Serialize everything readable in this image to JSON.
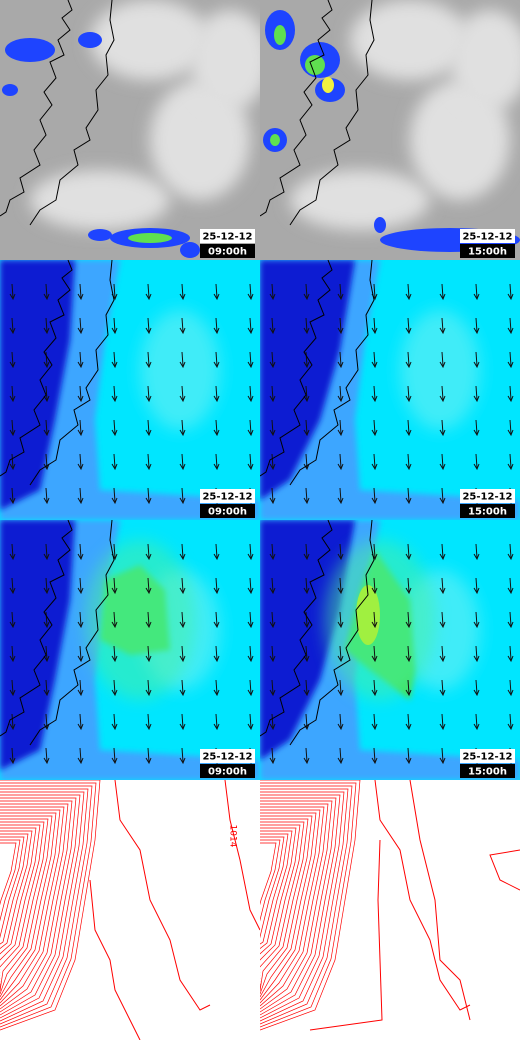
{
  "panels": [
    {
      "date": "25-12-12",
      "time": "09:00h"
    },
    {
      "date": "25-12-12",
      "time": "15:00h"
    },
    {
      "date": "25-12-12",
      "time": "09:00h"
    },
    {
      "date": "25-12-12",
      "time": "15:00h"
    },
    {
      "date": "25-12-12",
      "time": "09:00h"
    },
    {
      "date": "25-12-12",
      "time": "15:00h"
    }
  ],
  "contour_label": "1014"
}
